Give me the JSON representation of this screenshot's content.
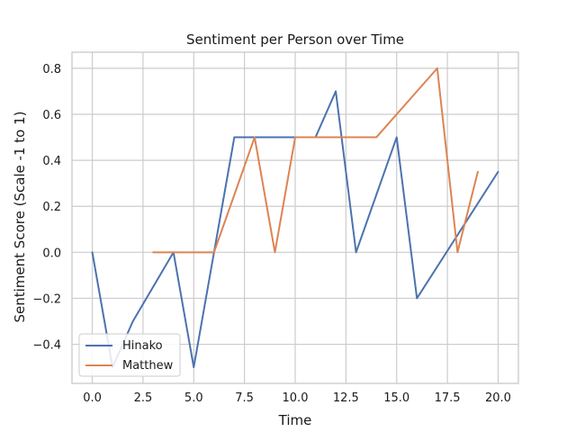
{
  "chart_data": {
    "type": "line",
    "title": "Sentiment per Person over Time",
    "xlabel": "Time",
    "ylabel": "Sentiment Score (Scale -1 to 1)",
    "xlim": [
      -1.0,
      21.0
    ],
    "ylim": [
      -0.57,
      0.87
    ],
    "xticks": [
      0.0,
      2.5,
      5.0,
      7.5,
      10.0,
      12.5,
      15.0,
      17.5,
      20.0
    ],
    "xtick_labels": [
      "0.0",
      "2.5",
      "5.0",
      "7.5",
      "10.0",
      "12.5",
      "15.0",
      "17.5",
      "20.0"
    ],
    "yticks": [
      -0.4,
      -0.2,
      0.0,
      0.2,
      0.4,
      0.6,
      0.8
    ],
    "ytick_labels": [
      "−0.4",
      "−0.2",
      "0.0",
      "0.2",
      "0.4",
      "0.6",
      "0.8"
    ],
    "grid": true,
    "legend_position": "lower-left",
    "series": [
      {
        "name": "Hinako",
        "color": "#4c72b0",
        "x": [
          0,
          1,
          2,
          4,
          5,
          7,
          8,
          10,
          11,
          12,
          13,
          15,
          16,
          20
        ],
        "y": [
          0.0,
          -0.5,
          -0.3,
          0.0,
          -0.5,
          0.5,
          0.5,
          0.5,
          0.5,
          0.7,
          0.0,
          0.5,
          -0.2,
          0.35
        ]
      },
      {
        "name": "Matthew",
        "color": "#dd8452",
        "x": [
          3,
          6,
          8,
          9,
          10,
          14,
          17,
          18,
          19
        ],
        "y": [
          0.0,
          0.0,
          0.5,
          0.0,
          0.5,
          0.5,
          0.8,
          0.0,
          0.35
        ]
      }
    ]
  }
}
